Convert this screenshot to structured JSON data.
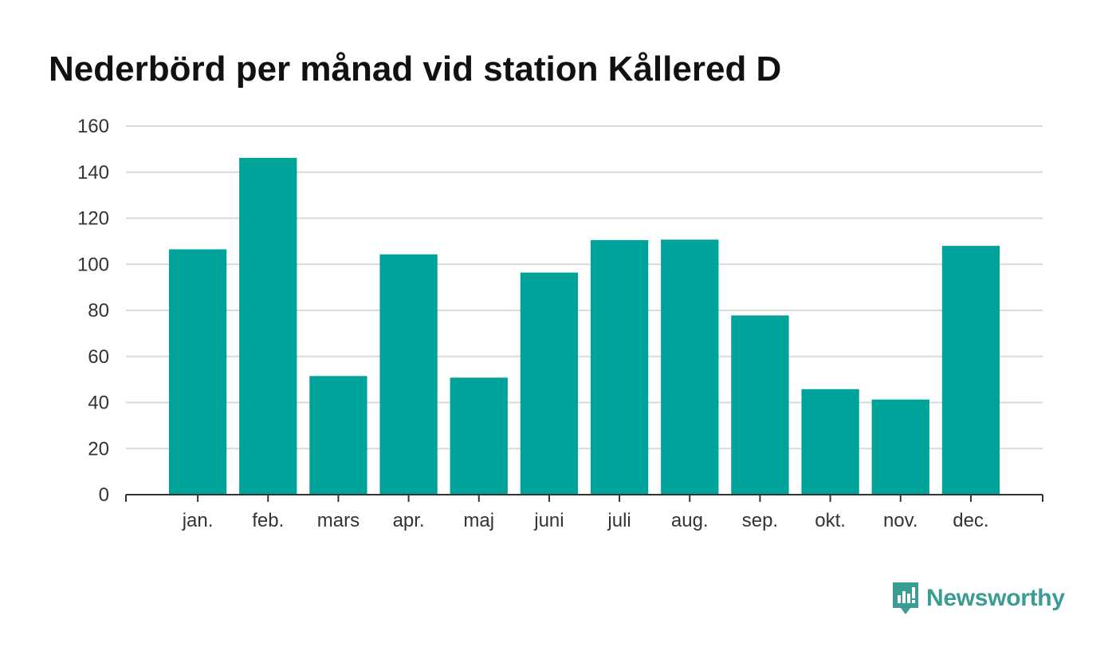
{
  "colors": {
    "bar": "#00a39a",
    "grid": "#d9d9d9",
    "axis": "#333333",
    "brand": "#3a9d94"
  },
  "logo": {
    "text": "Newsworthy",
    "icon": "newsworthy-logo-icon"
  },
  "chart_data": {
    "type": "bar",
    "title": "Nederbörd per månad vid station Kållered D",
    "xlabel": "",
    "ylabel": "",
    "categories": [
      "jan.",
      "feb.",
      "mars",
      "apr.",
      "maj",
      "juni",
      "juli",
      "aug.",
      "sep.",
      "okt.",
      "nov.",
      "dec."
    ],
    "values": [
      106.5,
      146.2,
      51.5,
      104.3,
      50.8,
      96.4,
      110.5,
      110.7,
      77.8,
      45.8,
      41.3,
      108.0
    ],
    "ylim": [
      0,
      160
    ],
    "yticks": [
      0,
      20,
      40,
      60,
      80,
      100,
      120,
      140,
      160
    ],
    "grid": true,
    "legend": "none"
  }
}
